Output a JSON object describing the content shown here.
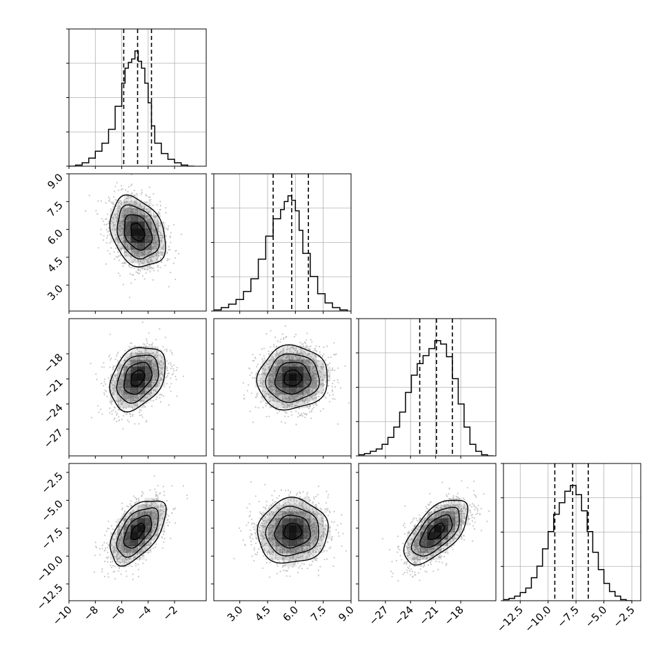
{
  "chart_data": {
    "type": "corner",
    "n_params": 4,
    "quantile_lines": "dashed",
    "grid": true,
    "params": [
      {
        "range": [
          -10.0,
          0.4
        ],
        "ticks": [
          -10,
          -8,
          -6,
          -4,
          -2
        ],
        "tick_labels": [
          "−10",
          "−8",
          "−6",
          "−4",
          "−2"
        ],
        "quantiles": [
          -5.85,
          -4.8,
          -3.75
        ],
        "hist_bin_edges": [
          -10.0,
          -9.5,
          -9.0,
          -8.5,
          -8.0,
          -7.5,
          -7.0,
          -6.5,
          -6.0,
          -5.75,
          -5.5,
          -5.25,
          -5.0,
          -4.75,
          -4.5,
          -4.25,
          -4.0,
          -3.75,
          -3.5,
          -3.0,
          -2.5,
          -2.0,
          -1.5,
          -1.0,
          -0.5
        ],
        "hist_counts": [
          0.0,
          0.01,
          0.03,
          0.07,
          0.13,
          0.2,
          0.32,
          0.52,
          0.72,
          0.85,
          0.9,
          0.93,
          1.0,
          0.91,
          0.85,
          0.72,
          0.55,
          0.35,
          0.2,
          0.11,
          0.06,
          0.03,
          0.01,
          0.0
        ]
      },
      {
        "range": [
          1.6,
          9.0
        ],
        "ticks": [
          3.0,
          4.5,
          6.0,
          7.5,
          9.0
        ],
        "tick_labels": [
          "3.0",
          "4.5",
          "6.0",
          "7.5",
          "9.0"
        ],
        "quantiles": [
          4.8,
          5.8,
          6.7
        ],
        "hist_bin_edges": [
          1.6,
          2.0,
          2.4,
          2.8,
          3.2,
          3.6,
          4.0,
          4.4,
          4.8,
          5.2,
          5.4,
          5.6,
          5.8,
          6.0,
          6.2,
          6.4,
          6.8,
          7.2,
          7.6,
          8.0,
          8.4,
          8.8
        ],
        "hist_counts": [
          0.01,
          0.03,
          0.06,
          0.1,
          0.17,
          0.28,
          0.45,
          0.65,
          0.8,
          0.88,
          0.95,
          1.0,
          0.96,
          0.87,
          0.7,
          0.5,
          0.3,
          0.15,
          0.07,
          0.03,
          0.01
        ]
      },
      {
        "range": [
          -30.2,
          -13.8
        ],
        "ticks": [
          -27,
          -24,
          -21,
          -18
        ],
        "tick_labels": [
          "−27",
          "−24",
          "−21",
          "−18"
        ],
        "quantiles": [
          -22.9,
          -20.9,
          -19.0
        ],
        "hist_bin_edges": [
          -30.2,
          -29.5,
          -28.8,
          -28.1,
          -27.4,
          -26.7,
          -26.0,
          -25.3,
          -24.6,
          -23.9,
          -23.2,
          -22.5,
          -21.8,
          -21.1,
          -20.4,
          -19.7,
          -19.0,
          -18.3,
          -17.6,
          -16.9,
          -16.2,
          -15.5,
          -14.8,
          -14.1
        ],
        "hist_counts": [
          0.01,
          0.02,
          0.04,
          0.06,
          0.1,
          0.16,
          0.25,
          0.38,
          0.55,
          0.7,
          0.8,
          0.87,
          0.93,
          1.0,
          0.97,
          0.86,
          0.67,
          0.45,
          0.25,
          0.1,
          0.04,
          0.01,
          0.0
        ]
      },
      {
        "range": [
          -14.0,
          -1.7
        ],
        "ticks": [
          -12.5,
          -10.0,
          -7.5,
          -5.0,
          -2.5
        ],
        "tick_labels": [
          "−12.5",
          "−10.0",
          "−7.5",
          "−5.0",
          "−2.5"
        ],
        "quantiles": [
          -9.4,
          -7.8,
          -6.4
        ],
        "hist_bin_edges": [
          -14.0,
          -13.5,
          -13.0,
          -12.5,
          -12.0,
          -11.5,
          -11.0,
          -10.5,
          -10.0,
          -9.5,
          -9.0,
          -8.5,
          -8.0,
          -7.5,
          -7.0,
          -6.5,
          -6.0,
          -5.5,
          -5.0,
          -4.5,
          -4.0,
          -3.5,
          -3.0,
          -2.5
        ],
        "hist_counts": [
          0.01,
          0.02,
          0.04,
          0.07,
          0.11,
          0.2,
          0.3,
          0.45,
          0.6,
          0.75,
          0.85,
          0.95,
          1.0,
          0.92,
          0.78,
          0.6,
          0.42,
          0.27,
          0.15,
          0.08,
          0.04,
          0.01,
          0.0
        ]
      }
    ],
    "pairs": [
      {
        "row": 1,
        "col": 0,
        "mean": [
          -4.8,
          5.85
        ],
        "sd": [
          1.05,
          0.95
        ],
        "corr": -0.28
      },
      {
        "row": 2,
        "col": 0,
        "mean": [
          -4.8,
          -20.9
        ],
        "sd": [
          1.05,
          1.9
        ],
        "corr": 0.32
      },
      {
        "row": 2,
        "col": 1,
        "mean": [
          5.85,
          -20.9
        ],
        "sd": [
          0.95,
          1.9
        ],
        "corr": 0.05
      },
      {
        "row": 3,
        "col": 0,
        "mean": [
          -4.8,
          -7.8
        ],
        "sd": [
          1.05,
          1.45
        ],
        "corr": 0.55
      },
      {
        "row": 3,
        "col": 1,
        "mean": [
          5.85,
          -7.8
        ],
        "sd": [
          0.95,
          1.45
        ],
        "corr": 0.05
      },
      {
        "row": 3,
        "col": 2,
        "mean": [
          -20.9,
          -7.8
        ],
        "sd": [
          1.9,
          1.45
        ],
        "corr": 0.62
      }
    ],
    "contour_levels_sigma": [
      0.5,
      1.0,
      1.5,
      2.0
    ],
    "colors": {
      "line": "#000000",
      "grid": "#b0b0b0",
      "scatter": "#c8c8c8",
      "density": "#000000"
    }
  }
}
